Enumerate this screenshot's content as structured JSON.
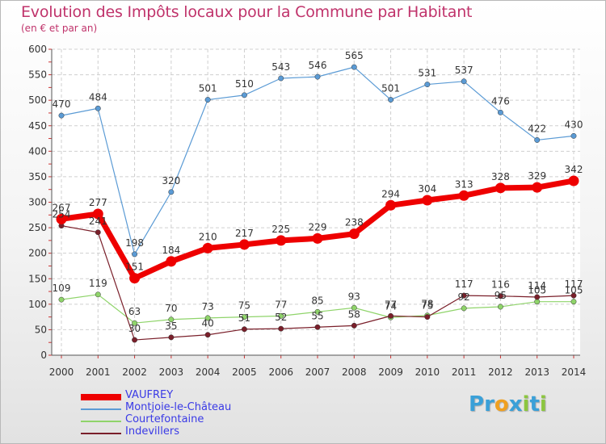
{
  "title": "Evolution des Impôts locaux pour la Commune par Habitant",
  "subtitle": "(en € et par an)",
  "logo": {
    "letters": [
      "P",
      "r",
      "o",
      "x",
      "i",
      "t",
      "i"
    ],
    "colors": [
      "#3aa0d8",
      "#3aa0d8",
      "#f0a020",
      "#3aa0d8",
      "#8cc63f",
      "#3aa0d8",
      "#8cc63f"
    ]
  },
  "chart_data": {
    "type": "line",
    "title": "Evolution des Impôts locaux pour la Commune par Habitant",
    "subtitle": "(en € et par an)",
    "x": [
      "2000",
      "2001",
      "2002",
      "2003",
      "2004",
      "2005",
      "2006",
      "2007",
      "2008",
      "2009",
      "2010",
      "2011",
      "2012",
      "2013",
      "2014"
    ],
    "ylim": [
      0,
      600
    ],
    "yticks": [
      "0",
      "50",
      "100",
      "150",
      "200",
      "250",
      "300",
      "350",
      "400",
      "450",
      "500",
      "550",
      "600"
    ],
    "grid": true,
    "legend_position": "bottom-left",
    "series": [
      {
        "name": "VAUFREY",
        "color": "#ee0000",
        "values": [
          267,
          277,
          151,
          184,
          210,
          217,
          225,
          229,
          238,
          294,
          304,
          313,
          328,
          329,
          342
        ]
      },
      {
        "name": "Montjoie-le-Château",
        "color": "#5b9bd5",
        "values": [
          470,
          484,
          198,
          320,
          501,
          510,
          543,
          546,
          565,
          501,
          531,
          537,
          476,
          422,
          430
        ]
      },
      {
        "name": "Courtefontaine",
        "color": "#8fd46a",
        "values": [
          109,
          119,
          63,
          70,
          73,
          75,
          77,
          85,
          93,
          74,
          78,
          92,
          95,
          105,
          105
        ]
      },
      {
        "name": "Indevillers",
        "color": "#7a1f2a",
        "values": [
          254,
          241,
          30,
          35,
          40,
          51,
          52,
          55,
          58,
          77,
          75,
          117,
          116,
          114,
          117
        ]
      }
    ]
  }
}
